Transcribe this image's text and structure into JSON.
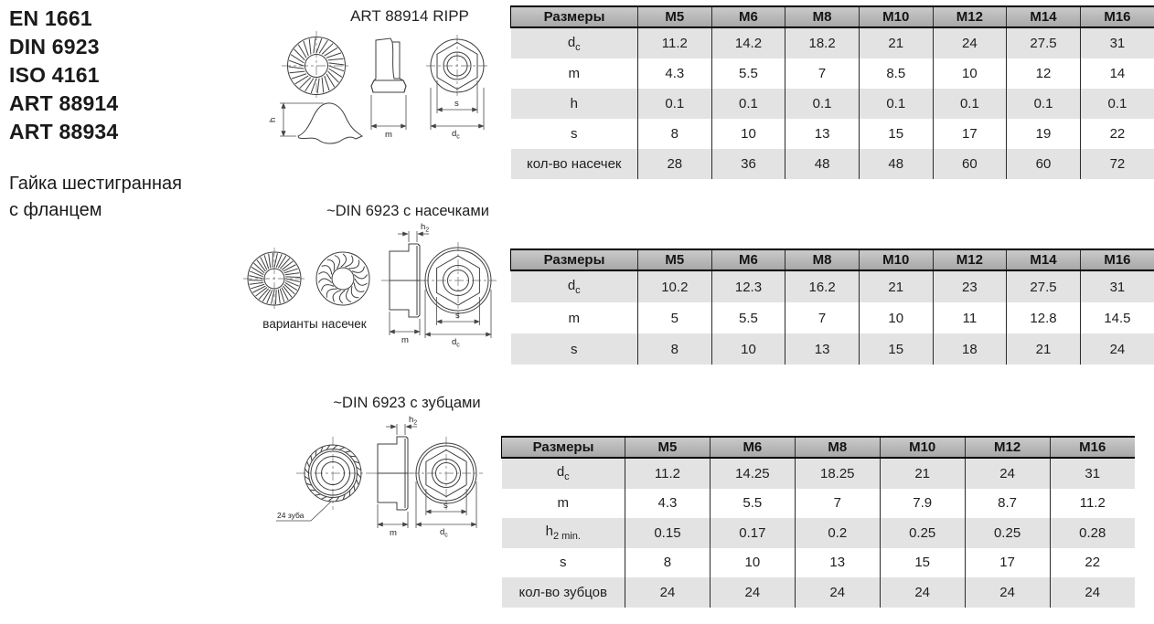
{
  "standards": [
    "EN 1661",
    "DIN 6923",
    "ISO 4161",
    "ART 88914",
    "ART 88934"
  ],
  "product": {
    "line1": "Гайка шестигранная",
    "line2": "с фланцем"
  },
  "drawings": [
    {
      "title": "ART 88914 RIPP"
    },
    {
      "title": "~DIN 6923 с насечками",
      "caption": "варианты насечек"
    },
    {
      "title": "~DIN 6923 с зубцами",
      "callout": "24 зуба"
    }
  ],
  "dims": {
    "h": "h",
    "m": "m",
    "s": "s",
    "d_base": "d",
    "d_sub": "c",
    "h2_base": "h",
    "h2_sub": "2"
  },
  "tables": [
    {
      "header": [
        "Размеры",
        "M5",
        "M6",
        "M8",
        "M10",
        "M12",
        "M14",
        "M16"
      ],
      "rows": [
        {
          "base": "d",
          "sub": "c",
          "values": [
            "11.2",
            "14.2",
            "18.2",
            "21",
            "24",
            "27.5",
            "31"
          ]
        },
        {
          "base": "m",
          "sub": "",
          "values": [
            "4.3",
            "5.5",
            "7",
            "8.5",
            "10",
            "12",
            "14"
          ]
        },
        {
          "base": "h",
          "sub": "",
          "values": [
            "0.1",
            "0.1",
            "0.1",
            "0.1",
            "0.1",
            "0.1",
            "0.1"
          ]
        },
        {
          "base": "s",
          "sub": "",
          "values": [
            "8",
            "10",
            "13",
            "15",
            "17",
            "19",
            "22"
          ]
        },
        {
          "base": "кол-во насечек",
          "sub": "",
          "values": [
            "28",
            "36",
            "48",
            "48",
            "60",
            "60",
            "72"
          ]
        }
      ]
    },
    {
      "header": [
        "Размеры",
        "M5",
        "M6",
        "M8",
        "M10",
        "M12",
        "M14",
        "M16"
      ],
      "rows": [
        {
          "base": "d",
          "sub": "c",
          "values": [
            "10.2",
            "12.3",
            "16.2",
            "21",
            "23",
            "27.5",
            "31"
          ]
        },
        {
          "base": "m",
          "sub": "",
          "values": [
            "5",
            "5.5",
            "7",
            "10",
            "11",
            "12.8",
            "14.5"
          ]
        },
        {
          "base": "s",
          "sub": "",
          "values": [
            "8",
            "10",
            "13",
            "15",
            "18",
            "21",
            "24"
          ]
        }
      ]
    },
    {
      "header": [
        "Размеры",
        "M5",
        "M6",
        "M8",
        "M10",
        "M12",
        "M16"
      ],
      "rows": [
        {
          "base": "d",
          "sub": "c",
          "values": [
            "11.2",
            "14.25",
            "18.25",
            "21",
            "24",
            "31"
          ]
        },
        {
          "base": "m",
          "sub": "",
          "values": [
            "4.3",
            "5.5",
            "7",
            "7.9",
            "8.7",
            "11.2"
          ]
        },
        {
          "base": "h",
          "sub": "2 min.",
          "values": [
            "0.15",
            "0.17",
            "0.2",
            "0.25",
            "0.25",
            "0.28"
          ]
        },
        {
          "base": "s",
          "sub": "",
          "values": [
            "8",
            "10",
            "13",
            "15",
            "17",
            "22"
          ]
        },
        {
          "base": "кол-во зубцов",
          "sub": "",
          "values": [
            "24",
            "24",
            "24",
            "24",
            "24",
            "24"
          ]
        }
      ]
    }
  ],
  "colors": {
    "table_header_bg": "#b3b3b3",
    "table_row_alt": "#e3e3e3",
    "table_border": "#1a1a1a",
    "drawing_line": "#3f3f3f",
    "page_bg": "#ffffff"
  }
}
